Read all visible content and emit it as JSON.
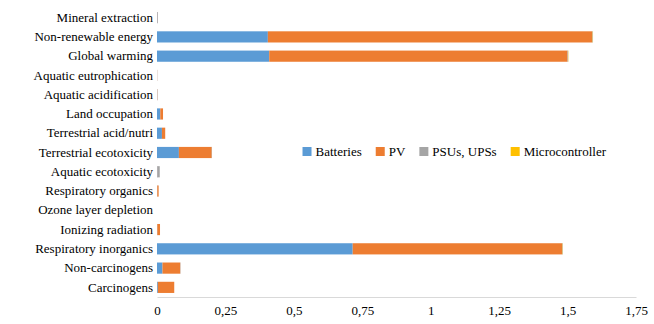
{
  "chart_data": {
    "type": "bar",
    "orientation": "horizontal",
    "stacked": true,
    "grid": false,
    "legend": "right",
    "categories": [
      "Mineral extraction",
      "Non-renewable energy",
      "Global warming",
      "Aquatic eutrophication",
      "Aquatic acidification",
      "Land occupation",
      "Terrestrial acid/nutri",
      "Terrestrial ecotoxicity",
      "Aquatic ecotoxicity",
      "Respiratory organics",
      "Ozone layer depletion",
      "Ionizing radiation",
      "Respiratory inorganics",
      "Non-carcinogens",
      "Carcinogens"
    ],
    "series": [
      {
        "name": "Batteries",
        "color": "#5b9bd5",
        "values": [
          0.002,
          0.405,
          0.41,
          0.0005,
          0.001,
          0.012,
          0.018,
          0.08,
          0.002,
          0.001,
          0,
          0.001,
          0.715,
          0.02,
          0.003
        ]
      },
      {
        "name": "PV",
        "color": "#ed7d31",
        "values": [
          0.001,
          1.185,
          1.09,
          0.0005,
          0.001,
          0.01,
          0.012,
          0.12,
          0.001,
          0.005,
          0,
          0.01,
          0.765,
          0.065,
          0.06
        ]
      },
      {
        "name": "PSUs, UPSs",
        "color": "#a5a5a5",
        "values": [
          0,
          0.002,
          0.002,
          0,
          0,
          0,
          0,
          0.001,
          0.007,
          0,
          0,
          0,
          0.002,
          0.001,
          0
        ]
      },
      {
        "name": "Microcontroller",
        "color": "#ffc000",
        "values": [
          0,
          0.001,
          0.001,
          0,
          0,
          0,
          0,
          0,
          0,
          0,
          0,
          0,
          0.001,
          0,
          0
        ]
      }
    ],
    "xlim": [
      0,
      1.75
    ],
    "xticks": [
      0,
      {
        "value": 0.25,
        "label": "0,25"
      },
      {
        "value": 0.5,
        "label": "0,5"
      },
      {
        "value": 0.75,
        "label": "0,75"
      },
      1,
      {
        "value": 1.25,
        "label": "1,25"
      },
      {
        "value": 1.5,
        "label": "1,5"
      },
      {
        "value": 1.75,
        "label": "1,75"
      }
    ]
  }
}
